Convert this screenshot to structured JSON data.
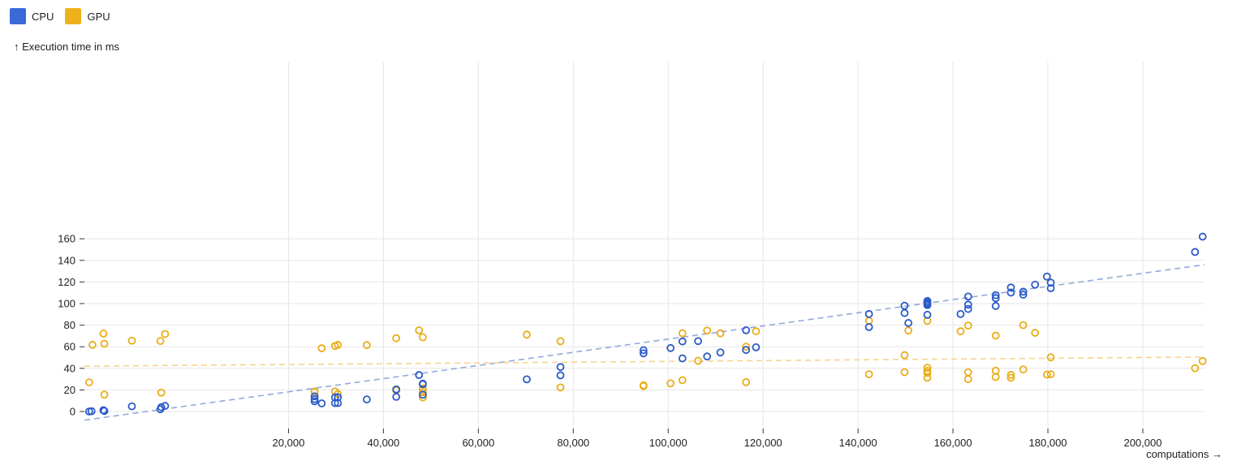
{
  "chart_data": {
    "type": "scatter",
    "xlabel": "computations →",
    "ylabel": "↑ Execution time in ms",
    "xlim": [
      -23000,
      213000
    ],
    "ylim": [
      -10,
      163
    ],
    "xticks": [
      20000,
      40000,
      60000,
      80000,
      100000,
      120000,
      140000,
      160000,
      180000,
      200000
    ],
    "xtick_labels": [
      "20,000",
      "40,000",
      "60,000",
      "80,000",
      "100,000",
      "120,000",
      "140,000",
      "160,000",
      "180,000",
      "200,000"
    ],
    "yticks": [
      0,
      20,
      40,
      60,
      80,
      100,
      120,
      140,
      160
    ],
    "ytick_labels": [
      "0",
      "20",
      "40",
      "60",
      "80",
      "100",
      "120",
      "140",
      "160"
    ],
    "grid": true,
    "legend_position": "top-left",
    "series": [
      {
        "name": "CPU",
        "color": "#2b5bc8",
        "legend_color": "#3a6ad6",
        "trend": [
          [
            -23000,
            -8
          ],
          [
            213000,
            136
          ]
        ],
        "points": [
          [
            -22000,
            0
          ],
          [
            -21500,
            0.3
          ],
          [
            -19000,
            1.2
          ],
          [
            -18800,
            0.5
          ],
          [
            -13000,
            4.8
          ],
          [
            -7000,
            2.1
          ],
          [
            -6800,
            4
          ],
          [
            -6000,
            5.2
          ],
          [
            25500,
            14.1
          ],
          [
            25500,
            11.5
          ],
          [
            25500,
            9.5
          ],
          [
            27000,
            7.5
          ],
          [
            29800,
            7.8
          ],
          [
            29800,
            13.1
          ],
          [
            30400,
            7.8
          ],
          [
            30400,
            13.2
          ],
          [
            36500,
            11.2
          ],
          [
            42700,
            20.5
          ],
          [
            42700,
            13.6
          ],
          [
            47500,
            33.8
          ],
          [
            48300,
            25.8
          ],
          [
            48300,
            25.3
          ],
          [
            48300,
            15.6
          ],
          [
            70200,
            29.8
          ],
          [
            77300,
            41.2
          ],
          [
            77300,
            33.5
          ],
          [
            94800,
            56.8
          ],
          [
            94800,
            53.9
          ],
          [
            100500,
            58.8
          ],
          [
            103000,
            49.2
          ],
          [
            103000,
            64.9
          ],
          [
            106300,
            65.2
          ],
          [
            108200,
            51
          ],
          [
            111000,
            54.7
          ],
          [
            116400,
            57
          ],
          [
            116400,
            75.3
          ],
          [
            118500,
            59.5
          ],
          [
            142300,
            90.3
          ],
          [
            142300,
            78.2
          ],
          [
            149800,
            98
          ],
          [
            149800,
            91.2
          ],
          [
            150600,
            82
          ],
          [
            154600,
            102.4
          ],
          [
            154600,
            100.9
          ],
          [
            154600,
            99.8
          ],
          [
            154600,
            98.6
          ],
          [
            154600,
            89.6
          ],
          [
            161600,
            90.3
          ],
          [
            163200,
            106.5
          ],
          [
            163200,
            99
          ],
          [
            163200,
            95
          ],
          [
            169000,
            107.8
          ],
          [
            169000,
            105
          ],
          [
            169000,
            97.8
          ],
          [
            172200,
            114.9
          ],
          [
            172200,
            110.2
          ],
          [
            174800,
            111
          ],
          [
            174800,
            108.2
          ],
          [
            177300,
            117.5
          ],
          [
            179800,
            125
          ],
          [
            180600,
            119.4
          ],
          [
            180600,
            114.2
          ],
          [
            211000,
            147.8
          ],
          [
            212600,
            162
          ]
        ]
      },
      {
        "name": "GPU",
        "color": "#ebac17",
        "legend_color": "#efb11b",
        "trend": [
          [
            -23000,
            42
          ],
          [
            213000,
            50.5
          ]
        ],
        "points": [
          [
            -22000,
            27
          ],
          [
            -21300,
            61.8
          ],
          [
            -19000,
            72.2
          ],
          [
            -18800,
            62.8
          ],
          [
            -18800,
            15.6
          ],
          [
            -13000,
            65.6
          ],
          [
            -7000,
            65.3
          ],
          [
            -6800,
            17.5
          ],
          [
            -6000,
            71.8
          ],
          [
            25500,
            18.5
          ],
          [
            25500,
            18.2
          ],
          [
            27000,
            58.6
          ],
          [
            29800,
            60.7
          ],
          [
            29800,
            18.6
          ],
          [
            30400,
            61.7
          ],
          [
            30400,
            16.2
          ],
          [
            36500,
            61.5
          ],
          [
            42700,
            67.9
          ],
          [
            42700,
            19.5
          ],
          [
            47500,
            75.2
          ],
          [
            48300,
            68.8
          ],
          [
            48300,
            21.3
          ],
          [
            48300,
            20.5
          ],
          [
            48300,
            17.8
          ],
          [
            48300,
            13
          ],
          [
            70200,
            71.2
          ],
          [
            77300,
            65.1
          ],
          [
            77300,
            22.3
          ],
          [
            94800,
            24.3
          ],
          [
            94800,
            23.5
          ],
          [
            100500,
            26.1
          ],
          [
            103000,
            72.5
          ],
          [
            103000,
            29
          ],
          [
            106300,
            47
          ],
          [
            108200,
            75
          ],
          [
            111000,
            72.4
          ],
          [
            116400,
            60
          ],
          [
            116400,
            27.2
          ],
          [
            118500,
            74.3
          ],
          [
            142300,
            84
          ],
          [
            142300,
            34.5
          ],
          [
            149800,
            52.2
          ],
          [
            149800,
            36.4
          ],
          [
            150600,
            75
          ],
          [
            154600,
            84
          ],
          [
            154600,
            40.5
          ],
          [
            154600,
            37.6
          ],
          [
            154600,
            35.8
          ],
          [
            154600,
            31.3
          ],
          [
            161600,
            74.3
          ],
          [
            163200,
            79.6
          ],
          [
            163200,
            36.3
          ],
          [
            163200,
            30
          ],
          [
            169000,
            70.3
          ],
          [
            169000,
            37.8
          ],
          [
            169000,
            31.9
          ],
          [
            172200,
            33.9
          ],
          [
            172200,
            31.3
          ],
          [
            174800,
            80
          ],
          [
            174800,
            39
          ],
          [
            177300,
            72.9
          ],
          [
            179800,
            34.2
          ],
          [
            180600,
            50.2
          ],
          [
            180600,
            34.5
          ],
          [
            211000,
            40.1
          ],
          [
            212600,
            46.8
          ]
        ]
      }
    ]
  }
}
